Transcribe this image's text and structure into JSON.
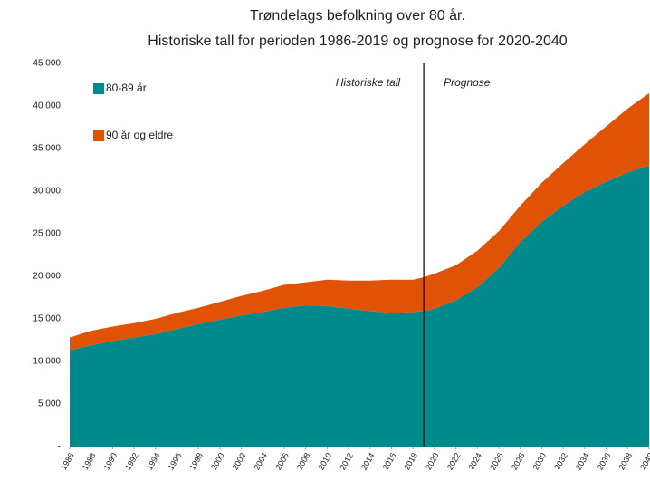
{
  "chart_data": {
    "type": "stacked_area",
    "title": "Trøndelags befolkning over 80 år.",
    "subtitle": "Historiske tall for perioden 1986-2019 og prognose for 2020-2040",
    "annotations": [
      "Historiske tall",
      "Prognose"
    ],
    "divider": 2019,
    "x": [
      1986,
      1988,
      1990,
      1992,
      1994,
      1996,
      1998,
      2000,
      2002,
      2004,
      2006,
      2008,
      2010,
      2012,
      2014,
      2016,
      2018,
      2019,
      2020,
      2022,
      2024,
      2026,
      2028,
      2030,
      2032,
      2034,
      2036,
      2038,
      2040
    ],
    "series": [
      {
        "name": "80-89 år",
        "color": "#008a8c",
        "values": [
          11300,
          11900,
          12400,
          12800,
          13200,
          13800,
          14400,
          14900,
          15400,
          15800,
          16300,
          16600,
          16500,
          16200,
          15900,
          15700,
          15800,
          15900,
          16200,
          17200,
          18700,
          21000,
          24000,
          26400,
          28300,
          29900,
          31100,
          32200,
          33000
        ]
      },
      {
        "name": "90 år og eldre",
        "color": "#e05206",
        "values": [
          1500,
          1700,
          1700,
          1700,
          1800,
          1900,
          1900,
          2100,
          2300,
          2500,
          2700,
          2700,
          3100,
          3300,
          3600,
          3900,
          3800,
          4000,
          4100,
          4100,
          4300,
          4300,
          4300,
          4600,
          5000,
          5600,
          6500,
          7500,
          8500
        ]
      }
    ],
    "xlim": [
      1986,
      2040
    ],
    "xticks": [
      1986,
      1988,
      1990,
      1992,
      1994,
      1996,
      1998,
      2000,
      2002,
      2004,
      2006,
      2008,
      2010,
      2012,
      2014,
      2016,
      2018,
      2020,
      2022,
      2024,
      2026,
      2028,
      2030,
      2032,
      2034,
      2036,
      2038,
      2040
    ],
    "ylim": [
      0,
      45000
    ],
    "yticks": [
      {
        "value": 0,
        "label": "-"
      },
      {
        "value": 5000,
        "label": "5 000"
      },
      {
        "value": 10000,
        "label": "10 000"
      },
      {
        "value": 15000,
        "label": "15 000"
      },
      {
        "value": 20000,
        "label": "20 000"
      },
      {
        "value": 25000,
        "label": "25 000"
      },
      {
        "value": 30000,
        "label": "30 000"
      },
      {
        "value": 35000,
        "label": "35 000"
      },
      {
        "value": 40000,
        "label": "40 000"
      },
      {
        "value": 45000,
        "label": "45 000"
      }
    ],
    "legend": "top-left"
  }
}
